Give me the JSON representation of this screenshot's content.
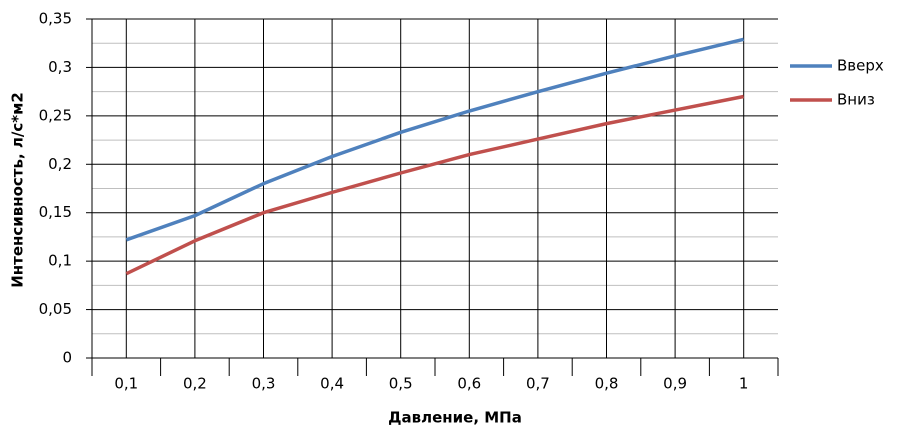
{
  "chart_data": {
    "type": "line",
    "x_label": "Давление, МПа",
    "y_label": "Интенсивность, л/с*м2",
    "categories": [
      "0,1",
      "0,2",
      "0,3",
      "0,4",
      "0,5",
      "0,6",
      "0,7",
      "0,8",
      "0,9",
      "1"
    ],
    "series": [
      {
        "name": "Вверх",
        "color": "#4f81bd",
        "values": [
          0.122,
          0.147,
          0.18,
          0.208,
          0.233,
          0.255,
          0.275,
          0.294,
          0.312,
          0.329
        ]
      },
      {
        "name": "Вниз",
        "color": "#c0504d",
        "values": [
          0.087,
          0.121,
          0.15,
          0.171,
          0.191,
          0.21,
          0.226,
          0.242,
          0.256,
          0.27
        ]
      }
    ],
    "ylim": [
      0,
      0.35
    ],
    "yticks": [
      0,
      {
        "value": 0.05,
        "label": "0,05"
      },
      {
        "value": 0.1,
        "label": "0,1"
      },
      {
        "value": 0.15,
        "label": "0,15"
      },
      {
        "value": 0.2,
        "label": "0,2"
      },
      {
        "value": 0.25,
        "label": "0,25"
      },
      {
        "value": 0.3,
        "label": "0,3"
      },
      {
        "value": 0.35,
        "label": "0,35"
      }
    ],
    "grid": true,
    "legend": "right"
  }
}
